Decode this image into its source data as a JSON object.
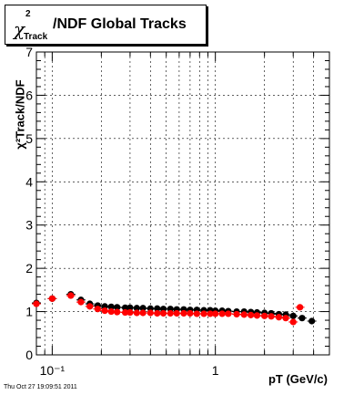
{
  "title": {
    "chi": "χ",
    "sup": "2",
    "sub": "Track",
    "rest": "/NDF  Global Tracks"
  },
  "ylabel": "χ²Track/NDF",
  "xlabel": "pT (GeV/c)",
  "timestamp": "Thu Oct 27 19:09:51 2011",
  "chart_data": {
    "type": "scatter",
    "title": "χ²Track/NDF  Global Tracks",
    "xlabel": "pT (GeV/c)",
    "ylabel": "χ²Track/NDF",
    "x_scale": "log",
    "xlim": [
      0.08,
      5.0
    ],
    "ylim": [
      0,
      7
    ],
    "grid": true,
    "x_ticks": [
      {
        "value": 0.1,
        "label": "10⁻¹"
      },
      {
        "value": 1,
        "label": "1"
      }
    ],
    "y_ticks": [
      0,
      1,
      2,
      3,
      4,
      5,
      6,
      7
    ],
    "series": [
      {
        "color": "#000000",
        "x": [
          0.08,
          0.1,
          0.13,
          0.15,
          0.17,
          0.19,
          0.21,
          0.23,
          0.25,
          0.28,
          0.3,
          0.33,
          0.36,
          0.4,
          0.44,
          0.48,
          0.53,
          0.58,
          0.64,
          0.7,
          0.77,
          0.85,
          0.93,
          1.0,
          1.1,
          1.2,
          1.35,
          1.5,
          1.65,
          1.8,
          2.0,
          2.2,
          2.45,
          2.7,
          3.0,
          3.4,
          3.9
        ],
        "y": [
          1.2,
          1.3,
          1.4,
          1.27,
          1.18,
          1.14,
          1.12,
          1.11,
          1.1,
          1.09,
          1.09,
          1.08,
          1.08,
          1.07,
          1.07,
          1.06,
          1.06,
          1.05,
          1.05,
          1.04,
          1.04,
          1.03,
          1.03,
          1.02,
          1.02,
          1.01,
          1.0,
          1.0,
          0.99,
          0.98,
          0.97,
          0.96,
          0.94,
          0.93,
          0.9,
          0.85,
          0.78
        ]
      },
      {
        "color": "#ff0000",
        "x": [
          0.08,
          0.1,
          0.13,
          0.15,
          0.17,
          0.19,
          0.21,
          0.23,
          0.25,
          0.28,
          0.3,
          0.33,
          0.36,
          0.4,
          0.44,
          0.48,
          0.53,
          0.58,
          0.64,
          0.7,
          0.77,
          0.85,
          0.93,
          1.0,
          1.1,
          1.2,
          1.35,
          1.5,
          1.65,
          1.8,
          2.0,
          2.2,
          2.45,
          2.7,
          3.0,
          3.3
        ],
        "y": [
          1.18,
          1.3,
          1.37,
          1.22,
          1.12,
          1.06,
          1.02,
          1.0,
          0.99,
          0.98,
          0.98,
          0.97,
          0.97,
          0.97,
          0.96,
          0.96,
          0.96,
          0.96,
          0.96,
          0.96,
          0.95,
          0.95,
          0.95,
          0.95,
          0.95,
          0.95,
          0.94,
          0.93,
          0.92,
          0.91,
          0.9,
          0.89,
          0.87,
          0.85,
          0.76,
          1.1
        ]
      }
    ]
  }
}
